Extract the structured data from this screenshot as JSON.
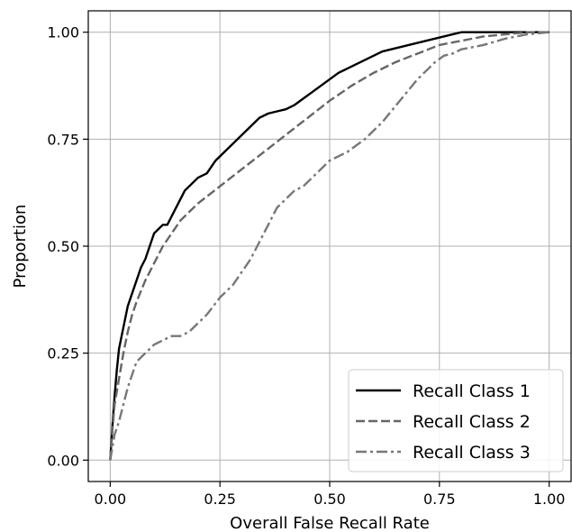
{
  "chart_data": {
    "type": "line",
    "title": "",
    "xlabel": "Overall False Recall Rate",
    "ylabel": "Proportion",
    "xlim": [
      -0.05,
      1.05
    ],
    "ylim": [
      -0.05,
      1.05
    ],
    "xticks": [
      0.0,
      0.25,
      0.5,
      0.75,
      1.0
    ],
    "xtick_labels": [
      "0.00",
      "0.25",
      "0.50",
      "0.75",
      "1.00"
    ],
    "yticks": [
      0.0,
      0.25,
      0.5,
      0.75,
      1.0
    ],
    "ytick_labels": [
      "0.00",
      "0.25",
      "0.50",
      "0.75",
      "1.00"
    ],
    "grid": true,
    "legend_position": "lower-right",
    "series": [
      {
        "name": "Recall Class 1",
        "color": "#000000",
        "dash": "solid",
        "x": [
          0,
          0.005,
          0.01,
          0.015,
          0.02,
          0.03,
          0.04,
          0.05,
          0.06,
          0.07,
          0.08,
          0.09,
          0.1,
          0.11,
          0.12,
          0.13,
          0.14,
          0.15,
          0.16,
          0.17,
          0.18,
          0.19,
          0.2,
          0.22,
          0.24,
          0.26,
          0.28,
          0.3,
          0.32,
          0.34,
          0.36,
          0.38,
          0.4,
          0.42,
          0.44,
          0.46,
          0.48,
          0.5,
          0.52,
          0.54,
          0.56,
          0.58,
          0.6,
          0.62,
          0.64,
          0.66,
          0.68,
          0.7,
          0.72,
          0.74,
          0.76,
          0.78,
          0.8,
          0.82,
          0.85,
          0.9,
          0.95,
          1.0
        ],
        "y": [
          0,
          0.08,
          0.15,
          0.21,
          0.26,
          0.31,
          0.36,
          0.39,
          0.42,
          0.45,
          0.47,
          0.5,
          0.53,
          0.54,
          0.55,
          0.55,
          0.57,
          0.59,
          0.61,
          0.63,
          0.64,
          0.65,
          0.66,
          0.67,
          0.7,
          0.72,
          0.74,
          0.76,
          0.78,
          0.8,
          0.81,
          0.815,
          0.82,
          0.83,
          0.845,
          0.86,
          0.875,
          0.89,
          0.905,
          0.915,
          0.925,
          0.935,
          0.945,
          0.955,
          0.96,
          0.965,
          0.97,
          0.975,
          0.98,
          0.985,
          0.99,
          0.995,
          1.0,
          1.0,
          1.0,
          1.0,
          1.0,
          1.0
        ]
      },
      {
        "name": "Recall Class 2",
        "color": "#666666",
        "dash": "dashed",
        "x": [
          0,
          0.005,
          0.01,
          0.02,
          0.03,
          0.04,
          0.05,
          0.06,
          0.08,
          0.1,
          0.12,
          0.14,
          0.16,
          0.18,
          0.2,
          0.25,
          0.3,
          0.35,
          0.4,
          0.45,
          0.5,
          0.55,
          0.6,
          0.65,
          0.7,
          0.75,
          0.8,
          0.85,
          0.9,
          0.95,
          1.0
        ],
        "y": [
          0,
          0.07,
          0.13,
          0.19,
          0.25,
          0.3,
          0.34,
          0.37,
          0.42,
          0.46,
          0.5,
          0.53,
          0.56,
          0.58,
          0.6,
          0.64,
          0.68,
          0.72,
          0.76,
          0.8,
          0.84,
          0.875,
          0.905,
          0.93,
          0.95,
          0.97,
          0.98,
          0.99,
          0.995,
          1.0,
          1.0
        ]
      },
      {
        "name": "Recall Class 3",
        "color": "#777777",
        "dash": "dashdot",
        "x": [
          0,
          0.005,
          0.01,
          0.02,
          0.03,
          0.04,
          0.05,
          0.06,
          0.08,
          0.1,
          0.12,
          0.14,
          0.16,
          0.18,
          0.2,
          0.22,
          0.25,
          0.28,
          0.3,
          0.32,
          0.34,
          0.36,
          0.38,
          0.4,
          0.42,
          0.44,
          0.46,
          0.48,
          0.5,
          0.52,
          0.54,
          0.56,
          0.58,
          0.6,
          0.62,
          0.64,
          0.66,
          0.68,
          0.7,
          0.72,
          0.74,
          0.76,
          0.78,
          0.8,
          0.85,
          0.9,
          0.95,
          1.0
        ],
        "y": [
          0,
          0.03,
          0.06,
          0.09,
          0.13,
          0.17,
          0.2,
          0.23,
          0.25,
          0.27,
          0.28,
          0.29,
          0.29,
          0.3,
          0.32,
          0.34,
          0.38,
          0.41,
          0.44,
          0.47,
          0.51,
          0.55,
          0.59,
          0.61,
          0.63,
          0.64,
          0.66,
          0.68,
          0.7,
          0.71,
          0.72,
          0.735,
          0.75,
          0.77,
          0.79,
          0.815,
          0.84,
          0.865,
          0.89,
          0.91,
          0.93,
          0.945,
          0.95,
          0.96,
          0.97,
          0.985,
          0.995,
          1.0
        ]
      }
    ]
  }
}
